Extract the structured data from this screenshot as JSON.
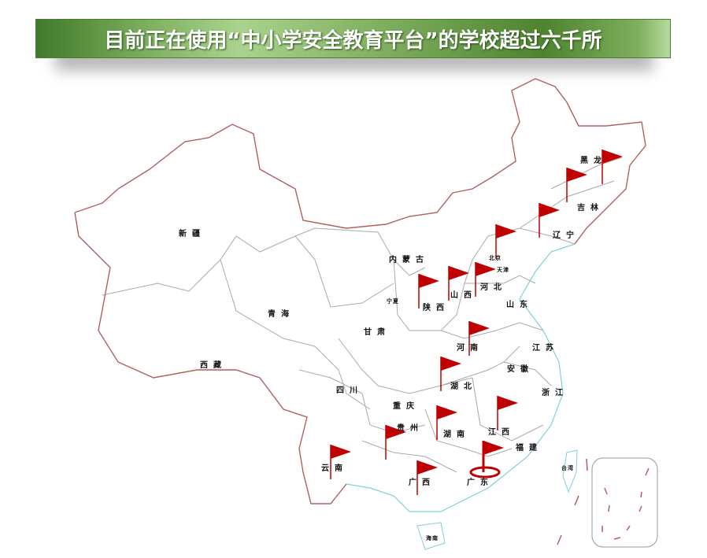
{
  "title": "目前正在使用“中小学安全教育平台”的学校超过六千所",
  "colors": {
    "flag": "#c00000",
    "border": "#b06060",
    "coast": "#7fd0d8",
    "internal": "#999999",
    "banner": "#6a9e4a"
  },
  "regions": [
    "黑龙",
    "吉林",
    "辽宁",
    "北京",
    "天津",
    "河北",
    "山西",
    "山东",
    "内蒙古",
    "新疆",
    "青海",
    "西藏",
    "甘肃",
    "宁夏",
    "陕西",
    "河南",
    "江苏",
    "安徽",
    "湖北",
    "四川",
    "重庆",
    "浙江",
    "贵州",
    "湖南",
    "江西",
    "福建",
    "云南",
    "广西",
    "广东",
    "台湾",
    "海南"
  ],
  "flag_icon": "red-flag-icon",
  "highlight_icon": "target-ring-icon"
}
